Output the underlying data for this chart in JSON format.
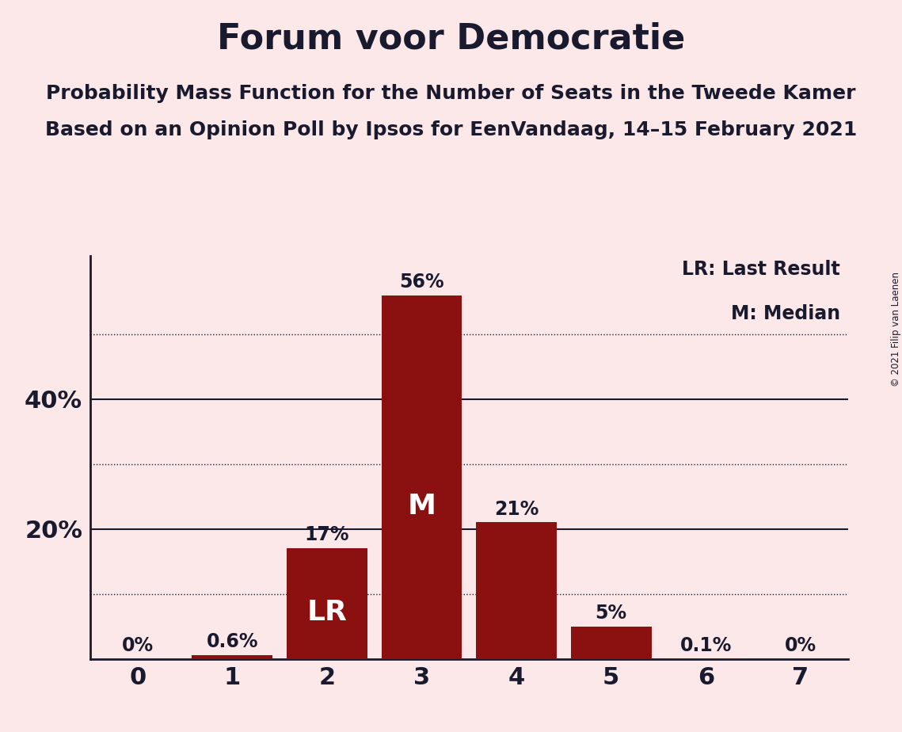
{
  "title": "Forum voor Democratie",
  "subtitle1": "Probability Mass Function for the Number of Seats in the Tweede Kamer",
  "subtitle2": "Based on an Opinion Poll by Ipsos for EenVandaag, 14–15 February 2021",
  "copyright": "© 2021 Filip van Laenen",
  "categories": [
    0,
    1,
    2,
    3,
    4,
    5,
    6,
    7
  ],
  "values": [
    0.0,
    0.006,
    0.17,
    0.56,
    0.21,
    0.05,
    0.001,
    0.0
  ],
  "value_labels": [
    "0%",
    "0.6%",
    "17%",
    "56%",
    "21%",
    "5%",
    "0.1%",
    "0%"
  ],
  "bar_color": "#8B1010",
  "background_color": "#fce8e8",
  "bar_labels": {
    "2": "LR",
    "3": "M"
  },
  "bar_label_color": "#ffffff",
  "yticks": [
    0.0,
    0.1,
    0.2,
    0.3,
    0.4,
    0.5
  ],
  "ytick_labels": [
    "",
    "",
    "20%",
    "",
    "40%",
    ""
  ],
  "solid_yticks": [
    0.2,
    0.4
  ],
  "dotted_yticks": [
    0.1,
    0.3,
    0.5
  ],
  "ylim": [
    0,
    0.62
  ],
  "title_fontsize": 32,
  "subtitle_fontsize": 18,
  "axis_label_color": "#1a1a2e",
  "tick_label_color": "#1a1a2e",
  "legend_text1": "LR: Last Result",
  "legend_text2": "M: Median"
}
